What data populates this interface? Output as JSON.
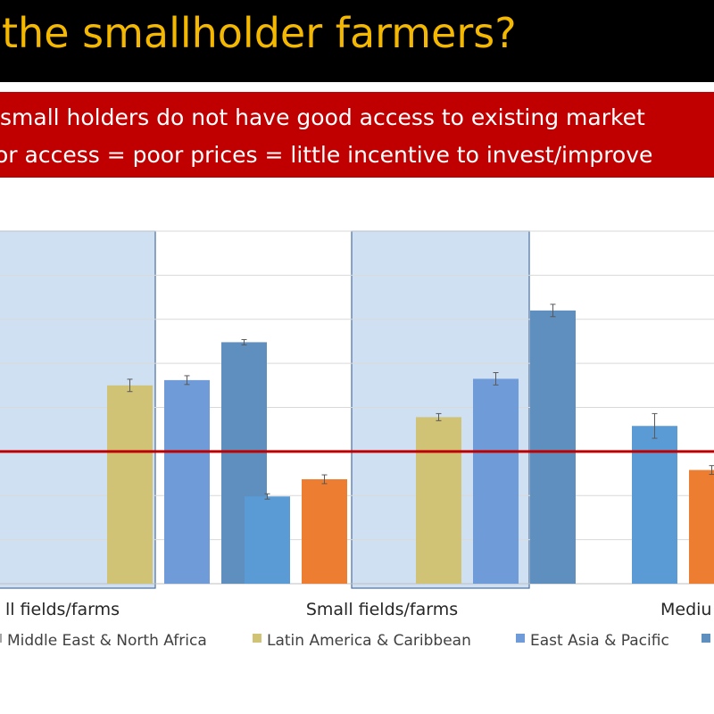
{
  "slide": {
    "title_fragment": "the smallholder farmers?",
    "message_line_1": "small holders do not have good access to existing market",
    "message_line_2": "or access = poor prices = little incentive to invest/improve"
  },
  "colors": {
    "title": "#f5b800",
    "message_bg": "#c00000",
    "highlight_fill": "#cfe0f2",
    "highlight_border": "#4a6f9e",
    "reference_line": "#c00000"
  },
  "chart_data": {
    "type": "bar",
    "ylim": [
      0,
      8
    ],
    "grid": true,
    "reference_line": 3,
    "legend_position": "bottom",
    "categories": [
      "ll fields/farms",
      "Small fields/farms",
      "Mediu"
    ],
    "series": [
      {
        "name": "",
        "color": "#5b9bd5",
        "values": [
          null,
          1.98,
          3.58
        ],
        "error": [
          null,
          0.06,
          0.28
        ]
      },
      {
        "name": "",
        "color": "#ed7d31",
        "values": [
          null,
          2.37,
          2.58
        ],
        "error": [
          null,
          0.1,
          0.1
        ]
      },
      {
        "name": "Middle East & North Africa",
        "color": "#a5a5a5",
        "values": [
          null,
          null,
          null
        ],
        "error": [
          null,
          null,
          null
        ]
      },
      {
        "name": "Latin America & Caribbean",
        "color": "#d0c375",
        "values": [
          4.5,
          3.78,
          null
        ],
        "error": [
          0.14,
          0.08,
          null
        ]
      },
      {
        "name": "East Asia & Pacific",
        "color": "#6f9cd8",
        "values": [
          4.62,
          4.65,
          null
        ],
        "error": [
          0.1,
          0.14,
          null
        ]
      },
      {
        "name": "",
        "color": "#5e8fbf",
        "values": [
          5.48,
          6.2,
          null
        ],
        "error": [
          0.06,
          0.14,
          null
        ]
      }
    ]
  }
}
